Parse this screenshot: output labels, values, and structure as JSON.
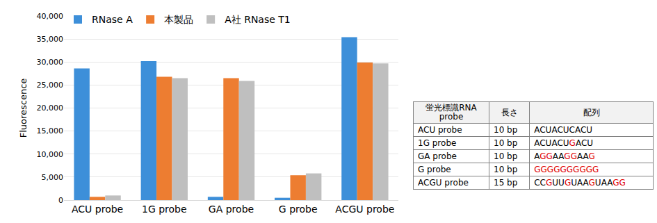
{
  "chart_data": {
    "type": "bar",
    "y_label": "Fluorescence",
    "categories": [
      "ACU probe",
      "1G probe",
      "GA probe",
      "G probe",
      "ACGU probe"
    ],
    "series": [
      {
        "name": "RNase A",
        "color": "#3d8fd9",
        "values": [
          28600,
          30200,
          700,
          500,
          35400
        ]
      },
      {
        "name": "本製品",
        "color": "#ed7d31",
        "values": [
          700,
          26800,
          26500,
          5400,
          29900
        ]
      },
      {
        "name": "A社 RNase T1",
        "color": "#bfbfbf",
        "values": [
          1000,
          26500,
          25900,
          5800,
          29700
        ]
      }
    ],
    "ylim": [
      0,
      40000
    ],
    "yticks": [
      0,
      {
        "value": 5000,
        "label": "5,000"
      },
      {
        "value": 10000,
        "label": "10,000"
      },
      {
        "value": 15000,
        "label": "15,000"
      },
      {
        "value": 20000,
        "label": "20,000"
      },
      {
        "value": 25000,
        "label": "25,000"
      },
      {
        "value": 30000,
        "label": "30,000"
      },
      {
        "value": 35000,
        "label": "35,000"
      },
      {
        "value": 40000,
        "label": "40,000"
      }
    ],
    "grid": true,
    "legend": "top"
  },
  "table": {
    "header": [
      "蛍光標識RNA probe",
      "長さ",
      "配列"
    ],
    "rows": [
      [
        "ACU probe",
        "10 bp",
        "ACUACUCACU"
      ],
      [
        "1G probe",
        "10 bp",
        "ACUACUGACU"
      ],
      [
        "GA probe",
        "10 bp",
        "AGGAAGGAAG"
      ],
      [
        "G probe",
        "10 bp",
        "GGGGGGGGGG"
      ],
      [
        "ACGU probe",
        "15 bp",
        "CCGUUGUAAGUAAGG"
      ]
    ],
    "highlight": {
      "letter": "G",
      "color": "#e00000"
    }
  }
}
